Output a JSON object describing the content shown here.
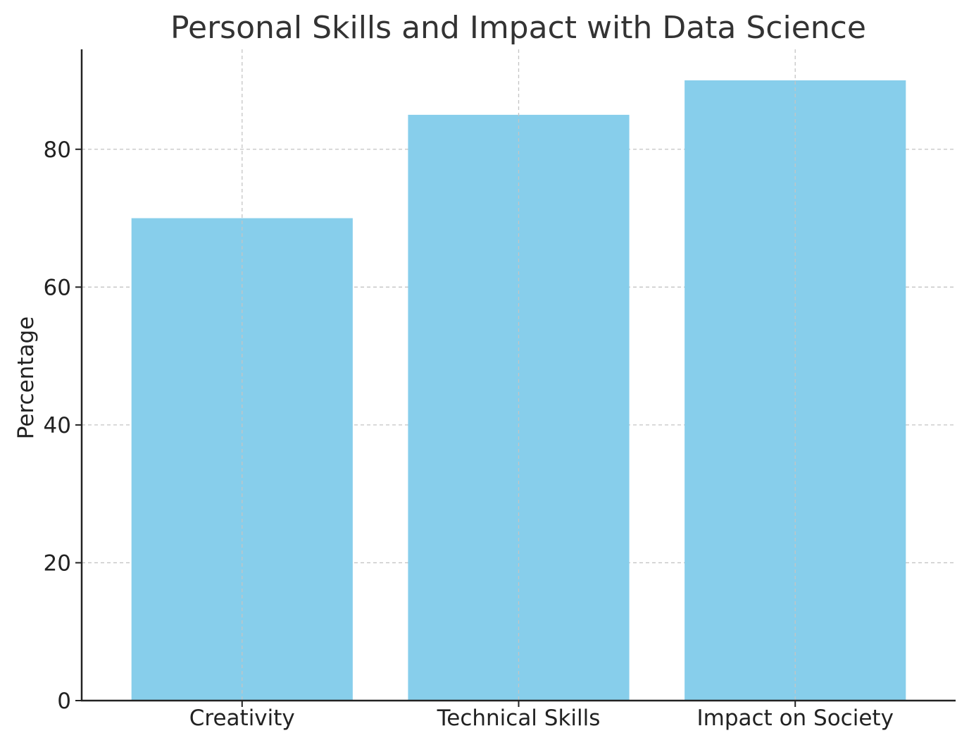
{
  "chart_data": {
    "type": "bar",
    "title": "Personal Skills and Impact with Data Science",
    "xlabel": "",
    "ylabel": "Percentage",
    "categories": [
      "Creativity",
      "Technical Skills",
      "Impact on Society"
    ],
    "values": [
      70,
      85,
      90
    ],
    "ylim": [
      0,
      94.5
    ],
    "yticks": [
      0,
      20,
      40,
      60,
      80
    ],
    "grid": true,
    "bar_color": "#87CEEB",
    "axis_color": "#222222",
    "grid_color": "#c4c4c4"
  }
}
